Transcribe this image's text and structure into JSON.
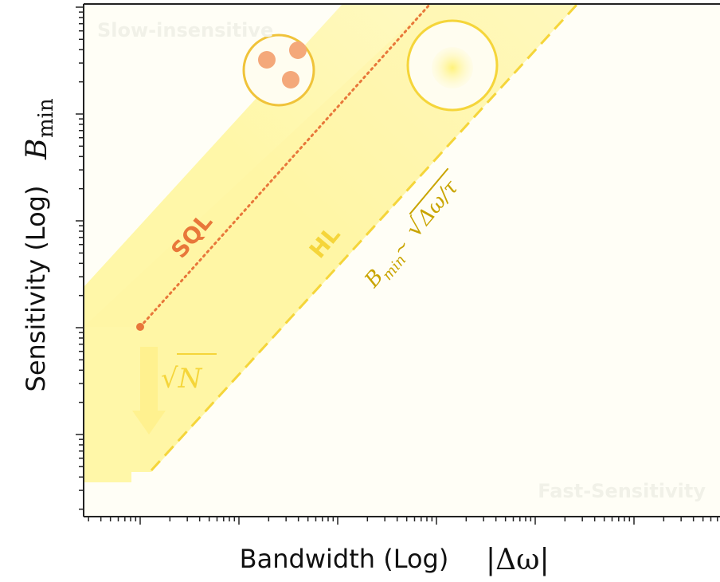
{
  "axes": {
    "x_label": "Bandwidth (Log)",
    "x_symbol": "|Δω|",
    "y_label": "Sensitivity (Log)",
    "y_symbol": {
      "base": "B",
      "sub": "min"
    }
  },
  "regions": {
    "top_left": "Slow-insensitive",
    "bottom_right": "Fast-Sensitivity"
  },
  "lines": {
    "sql": "SQL",
    "hl": "HL"
  },
  "annotations": {
    "scaling": "√N",
    "formula": {
      "base": "B",
      "sub": "min",
      "relation": " ~ ",
      "root": "√",
      "radicand": "Δω/τ"
    }
  }
}
